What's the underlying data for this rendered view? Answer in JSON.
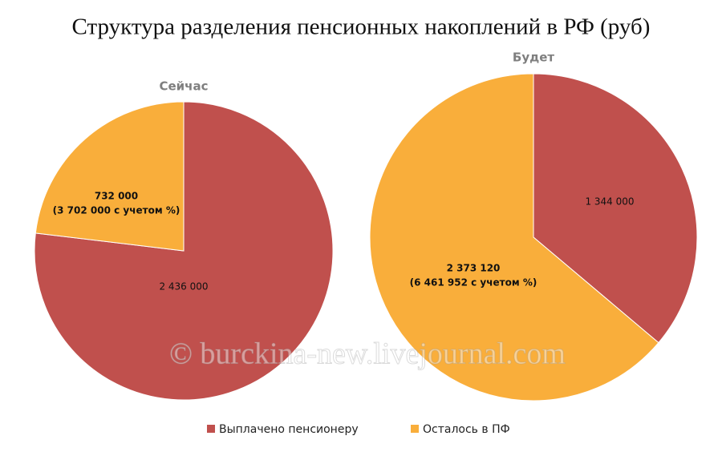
{
  "title": "Структура разделения пенсионных накоплений в РФ (руб)",
  "watermark": "© burckina-new.livejournal.com",
  "chart_data": [
    {
      "type": "pie",
      "title": "Сейчас",
      "categories": [
        "Выплачено пенсионеру",
        "Осталось в ПФ"
      ],
      "values": [
        2436000,
        732000
      ],
      "value_labels": [
        "2 436 000",
        "732 000"
      ],
      "annotations": [
        null,
        "(3 702 000 с учетом %)"
      ],
      "colors": [
        "#c0504d",
        "#f9ae3b"
      ]
    },
    {
      "type": "pie",
      "title": "Будет",
      "categories": [
        "Выплачено пенсионеру",
        "Осталось в ПФ"
      ],
      "values": [
        1344000,
        2373120
      ],
      "value_labels": [
        "1 344 000",
        "2 373 120"
      ],
      "annotations": [
        null,
        "(6 461 952 с учетом %)"
      ],
      "colors": [
        "#c0504d",
        "#f9ae3b"
      ]
    }
  ]
}
